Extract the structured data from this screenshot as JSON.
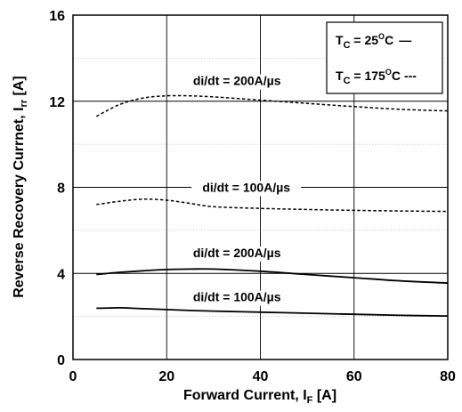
{
  "chart_data": {
    "type": "line",
    "xlabel": "Forward Current, I",
    "xlabel_sub": "F",
    "xlabel_unit": " [A]",
    "ylabel": "Reverse Recovery Currnet, I",
    "ylabel_sub": "rr",
    "ylabel_unit": " [A]",
    "xlim": [
      0,
      80
    ],
    "ylim": [
      0,
      16
    ],
    "xticks": [
      0,
      20,
      40,
      60,
      80
    ],
    "yticks": [
      0,
      4,
      8,
      12,
      16
    ],
    "grid": true,
    "minor_grid_y": true,
    "legend": {
      "placement": "top-right",
      "items": [
        {
          "prefix": "T",
          "sub": "C",
          "mid": " = 25",
          "sup": "O",
          "suffix": "C",
          "marker": "—",
          "style": "solid"
        },
        {
          "prefix": "T",
          "sub": "C",
          "mid": " = 175",
          "sup": "O",
          "suffix": "C",
          "marker": "---",
          "style": "dashed"
        }
      ]
    },
    "series": [
      {
        "label": "di/dt = 200A/µs",
        "temperature": "175",
        "style": "dashed",
        "x": [
          5,
          10,
          15,
          20,
          25,
          30,
          40,
          50,
          60,
          70,
          80
        ],
        "y": [
          11.3,
          11.85,
          12.15,
          12.25,
          12.25,
          12.2,
          12.05,
          11.9,
          11.75,
          11.62,
          11.55
        ]
      },
      {
        "label": "di/dt = 100A/µs",
        "temperature": "175",
        "style": "dashed",
        "x": [
          5,
          10,
          15,
          20,
          25,
          30,
          40,
          50,
          60,
          70,
          80
        ],
        "y": [
          7.2,
          7.35,
          7.45,
          7.4,
          7.25,
          7.1,
          7.02,
          6.97,
          6.93,
          6.9,
          6.88
        ]
      },
      {
        "label": "di/dt = 200A/µs",
        "temperature": "25",
        "style": "solid",
        "x": [
          5,
          10,
          15,
          20,
          25,
          30,
          40,
          50,
          60,
          70,
          80
        ],
        "y": [
          3.95,
          4.05,
          4.12,
          4.18,
          4.2,
          4.2,
          4.1,
          3.95,
          3.8,
          3.65,
          3.55
        ]
      },
      {
        "label": "di/dt = 100A/µs",
        "temperature": "25",
        "style": "solid",
        "x": [
          5,
          10,
          15,
          20,
          25,
          30,
          40,
          50,
          60,
          70,
          80
        ],
        "y": [
          2.38,
          2.4,
          2.36,
          2.32,
          2.28,
          2.25,
          2.2,
          2.15,
          2.1,
          2.05,
          2.02
        ]
      }
    ],
    "annotations": [
      {
        "text": "di/dt = 200A/µs",
        "x": 35,
        "y": 12.75
      },
      {
        "text": "di/dt = 100A/µs",
        "x": 37,
        "y": 7.8
      },
      {
        "text": "di/dt = 200A/µs",
        "x": 35,
        "y": 4.75
      },
      {
        "text": "di/dt = 100A/µs",
        "x": 35,
        "y": 2.7
      }
    ]
  }
}
